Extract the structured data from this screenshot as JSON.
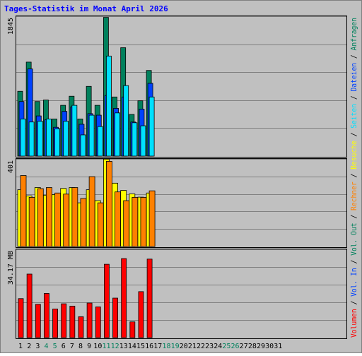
{
  "page": {
    "title": "Tages-Statistik im Monat April 2026"
  },
  "colors": {
    "background": "#c0c0c0",
    "frame_bg": "#ffffff",
    "title": "#0000ff",
    "anfragen": "#00805c",
    "dateien": "#0042ff",
    "seiten": "#00e0ff",
    "besuche": "#ffff00",
    "rechner": "#ff8000",
    "volumen": "#ff0000",
    "grid": "#808080",
    "weekend_label": "#00805c"
  },
  "chart_data": [
    {
      "type": "bar",
      "panel": "requests",
      "ymax_label": "1845",
      "ymax": 1845,
      "days": [
        "1",
        "2",
        "3",
        "4",
        "5",
        "6",
        "7",
        "8",
        "9",
        "10",
        "11",
        "12",
        "13",
        "14",
        "15",
        "16",
        "17",
        "18",
        "19",
        "20",
        "21",
        "22",
        "23",
        "24",
        "25",
        "26",
        "27",
        "28",
        "29",
        "30",
        "31"
      ],
      "weekend_days": [
        "4",
        "5",
        "11",
        "12",
        "18",
        "19",
        "25",
        "26"
      ],
      "series": [
        {
          "name": "Anfragen",
          "values": [
            855,
            1240,
            720,
            740,
            490,
            670,
            790,
            490,
            920,
            670,
            1830,
            780,
            1430,
            550,
            730,
            1130
          ]
        },
        {
          "name": "Dateien",
          "values": [
            720,
            1150,
            530,
            480,
            380,
            590,
            650,
            420,
            560,
            540,
            800,
            630,
            780,
            450,
            620,
            960
          ]
        },
        {
          "name": "Seiten",
          "values": [
            490,
            450,
            460,
            490,
            360,
            460,
            670,
            280,
            540,
            390,
            1320,
            570,
            930,
            440,
            400,
            780
          ]
        }
      ],
      "legend_labels": [
        "Seiten",
        "Dateien",
        "Anfragen"
      ]
    },
    {
      "type": "bar",
      "panel": "visits",
      "ymax_label": "401",
      "ymax": 401,
      "series": [
        {
          "name": "Besuche",
          "values": [
            260,
            232,
            270,
            235,
            238,
            266,
            270,
            200,
            260,
            210,
            400,
            290,
            257,
            241,
            226,
            245
          ]
        },
        {
          "name": "Rechner",
          "values": [
            325,
            225,
            265,
            270,
            245,
            240,
            270,
            220,
            320,
            200,
            390,
            250,
            210,
            225,
            225,
            255
          ]
        }
      ],
      "legend_labels": [
        "Rechner",
        "Besuche"
      ]
    },
    {
      "type": "bar",
      "panel": "volume",
      "ymax_label": "34.17 MB",
      "ymax": 34.17,
      "series": [
        {
          "name": "Volumen",
          "values": [
            15.1,
            24.6,
            12.9,
            17.1,
            11.1,
            13.1,
            12.2,
            8.1,
            13.4,
            11.9,
            28.4,
            15.3,
            30.6,
            6.1,
            17.8,
            30.4
          ]
        }
      ],
      "legend_labels": [
        "Volumen",
        "Vol. In",
        "Vol. Out"
      ]
    }
  ]
}
